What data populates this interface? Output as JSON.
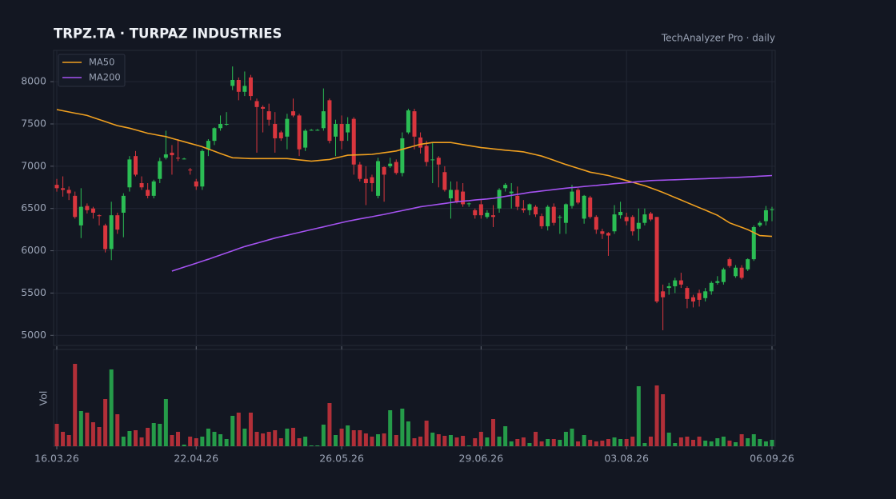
{
  "chart_data": {
    "type": "candlestick",
    "title": "TRPZ.TA  ·  TURPAZ INDUSTRIES",
    "subtitle": "TechAnalyzer Pro · daily",
    "volume_label": "Vol",
    "categories": [
      "16.03.26",
      null,
      null,
      null,
      null,
      null,
      null,
      null,
      null,
      null,
      null,
      null,
      null,
      null,
      null,
      null,
      null,
      null,
      null,
      null,
      null,
      null,
      null,
      "22.04.26",
      null,
      null,
      null,
      null,
      null,
      null,
      null,
      null,
      null,
      null,
      null,
      null,
      null,
      null,
      null,
      null,
      null,
      null,
      null,
      null,
      null,
      null,
      null,
      "26.05.26",
      null,
      null,
      null,
      null,
      null,
      null,
      null,
      null,
      null,
      null,
      null,
      null,
      null,
      null,
      null,
      null,
      null,
      null,
      null,
      null,
      null,
      null,
      "29.06.26",
      null,
      null,
      null,
      null,
      null,
      null,
      null,
      null,
      null,
      null,
      null,
      null,
      null,
      null,
      null,
      null,
      null,
      null,
      null,
      null,
      null,
      null,
      null,
      "03.08.26",
      null,
      null,
      null,
      null,
      null,
      null,
      null,
      null,
      null,
      null,
      null,
      null,
      null,
      null,
      null,
      null,
      null,
      null,
      null,
      null,
      null,
      null,
      null,
      "06.09.26"
    ],
    "open": [
      6780,
      6740,
      6720,
      6650,
      6300,
      6530,
      6500,
      6420,
      6300,
      6020,
      6420,
      6450,
      6750,
      7120,
      6800,
      6720,
      6650,
      6850,
      7100,
      7160,
      7100,
      7090,
      6960,
      6820,
      6760,
      7200,
      7300,
      7450,
      7500,
      7950,
      8020,
      7880,
      8050,
      7770,
      7700,
      7650,
      7500,
      7400,
      7350,
      7650,
      7600,
      7220,
      7430,
      7430,
      7450,
      7780,
      7350,
      7500,
      7400,
      7560,
      7020,
      6850,
      6870,
      6650,
      6990,
      7000,
      7050,
      6920,
      7400,
      7650,
      7340,
      7240,
      7080,
      7100,
      6930,
      6620,
      6720,
      6700,
      6560,
      6480,
      6550,
      6400,
      6420,
      6500,
      6740,
      6680,
      6650,
      6500,
      6480,
      6520,
      6410,
      6290,
      6520,
      6400,
      6330,
      6530,
      6720,
      6380,
      6630,
      6400,
      6230,
      6210,
      6230,
      6420,
      6400,
      6400,
      6260,
      6330,
      6440,
      6400,
      5520,
      5560,
      5580,
      5650,
      5560,
      5450,
      5500,
      5440,
      5520,
      5620,
      5630,
      5900,
      5700,
      5800,
      5780,
      5900,
      6300,
      6350,
      6480
    ],
    "high": [
      6850,
      6880,
      6760,
      6700,
      6740,
      6560,
      6520,
      6430,
      6320,
      6580,
      6450,
      6680,
      7120,
      7180,
      6880,
      6800,
      6840,
      7100,
      7420,
      7250,
      7320,
      7100,
      6980,
      6850,
      7200,
      7320,
      7460,
      7600,
      7640,
      8180,
      8050,
      8120,
      8080,
      7800,
      7720,
      7740,
      7640,
      7420,
      7620,
      7800,
      7620,
      7440,
      7440,
      7440,
      7920,
      7800,
      7550,
      7600,
      7580,
      7580,
      7050,
      7000,
      6900,
      7100,
      7000,
      7100,
      7080,
      7400,
      7680,
      7680,
      7400,
      7300,
      7280,
      7120,
      7000,
      6820,
      6820,
      6800,
      6570,
      6500,
      6600,
      6480,
      6540,
      6740,
      6800,
      6800,
      6760,
      6600,
      6560,
      6540,
      6440,
      6540,
      6560,
      6420,
      6560,
      6780,
      6740,
      6660,
      6650,
      6420,
      6260,
      6220,
      6540,
      6580,
      6450,
      6420,
      6500,
      6500,
      6460,
      6400,
      5600,
      5620,
      5680,
      5740,
      5580,
      5480,
      5540,
      5560,
      5640,
      5700,
      5800,
      5920,
      5830,
      5830,
      5910,
      6300,
      6350,
      6530,
      6520
    ],
    "low": [
      6700,
      6640,
      6600,
      6380,
      6150,
      6440,
      6380,
      6300,
      5980,
      5890,
      6200,
      6160,
      6700,
      6880,
      6720,
      6620,
      6620,
      6800,
      7080,
      6900,
      7060,
      7080,
      6900,
      6720,
      6720,
      7120,
      7250,
      7420,
      7480,
      7900,
      7780,
      7830,
      7780,
      7160,
      7400,
      7480,
      7160,
      7300,
      7200,
      7580,
      7120,
      7180,
      7420,
      7420,
      7420,
      7270,
      7120,
      7200,
      7300,
      6900,
      6820,
      6540,
      6700,
      6620,
      6580,
      6980,
      6900,
      6880,
      7380,
      7200,
      7150,
      7000,
      6800,
      6750,
      6700,
      6380,
      6560,
      6520,
      6520,
      6380,
      6380,
      6380,
      6280,
      6450,
      6700,
      6500,
      6480,
      6450,
      6420,
      6400,
      6260,
      6240,
      6300,
      6200,
      6200,
      6500,
      6550,
      6320,
      6380,
      6200,
      6140,
      5940,
      6200,
      6380,
      6300,
      6180,
      6120,
      6300,
      6350,
      5380,
      5060,
      5480,
      5500,
      5560,
      5320,
      5330,
      5340,
      5400,
      5480,
      5600,
      5600,
      5800,
      5680,
      5660,
      5760,
      5880,
      6280,
      6300,
      6350
    ],
    "close": [
      6740,
      6720,
      6680,
      6400,
      6520,
      6480,
      6450,
      6410,
      6020,
      6420,
      6250,
      6650,
      7080,
      6900,
      6750,
      6650,
      6820,
      7060,
      7140,
      7130,
      7090,
      7090,
      6950,
      6760,
      7180,
      7300,
      7450,
      7500,
      7500,
      8020,
      7880,
      7950,
      7830,
      7700,
      7680,
      7550,
      7330,
      7330,
      7560,
      7600,
      7200,
      7420,
      7430,
      7430,
      7650,
      7300,
      7500,
      7300,
      7500,
      7020,
      6850,
      6800,
      6800,
      7060,
      6900,
      7030,
      6920,
      7330,
      7660,
      7350,
      7220,
      7050,
      7080,
      7020,
      6720,
      6720,
      6580,
      6550,
      6560,
      6420,
      6420,
      6450,
      6400,
      6720,
      6780,
      6700,
      6520,
      6480,
      6550,
      6430,
      6290,
      6520,
      6330,
      6400,
      6550,
      6700,
      6570,
      6650,
      6400,
      6250,
      6200,
      6180,
      6430,
      6460,
      6350,
      6230,
      6330,
      6430,
      6370,
      5400,
      5450,
      5580,
      5650,
      5600,
      5430,
      5400,
      5420,
      5520,
      5620,
      5640,
      5780,
      5820,
      5800,
      5680,
      5900,
      6280,
      6330,
      6480,
      6490
    ],
    "volume": [
      28,
      18,
      14,
      103,
      44,
      42,
      30,
      24,
      59,
      96,
      40,
      12,
      19,
      20,
      11,
      23,
      29,
      28,
      59,
      14,
      18,
      2,
      12,
      10,
      12,
      22,
      18,
      15,
      9,
      38,
      42,
      22,
      42,
      18,
      16,
      18,
      20,
      10,
      22,
      23,
      10,
      12,
      1,
      1,
      27,
      54,
      14,
      22,
      26,
      20,
      20,
      16,
      12,
      15,
      16,
      45,
      14,
      47,
      31,
      10,
      12,
      32,
      17,
      15,
      13,
      14,
      11,
      13,
      1,
      10,
      18,
      11,
      34,
      12,
      25,
      6,
      9,
      11,
      4,
      18,
      6,
      9,
      9,
      8,
      18,
      22,
      6,
      14,
      8,
      6,
      7,
      9,
      11,
      9,
      9,
      12,
      75,
      4,
      12,
      76,
      65,
      17,
      4,
      11,
      12,
      8,
      12,
      7,
      6,
      10,
      12,
      7,
      5,
      15,
      10,
      15,
      9,
      6,
      8
    ],
    "up_color": "#2bbd54",
    "down_color": "#d9363e",
    "series": [
      {
        "name": "MA50",
        "color": "#f0a020",
        "values": [
          7670,
          7656,
          7642,
          7628,
          7614,
          7600,
          7576,
          7552,
          7528,
          7504,
          7480,
          7465,
          7450,
          7430,
          7410,
          7390,
          7377,
          7363,
          7350,
          7330,
          7310,
          7290,
          7270,
          7250,
          7230,
          7203,
          7177,
          7150,
          7125,
          7100,
          7097,
          7093,
          7090,
          7090,
          7090,
          7090,
          7090,
          7090,
          7090,
          7083,
          7075,
          7068,
          7060,
          7067,
          7073,
          7080,
          7097,
          7113,
          7130,
          7133,
          7135,
          7138,
          7140,
          7150,
          7160,
          7170,
          7180,
          7200,
          7220,
          7240,
          7260,
          7270,
          7280,
          7280,
          7280,
          7280,
          7268,
          7256,
          7244,
          7232,
          7220,
          7213,
          7205,
          7198,
          7190,
          7183,
          7177,
          7170,
          7153,
          7137,
          7120,
          7095,
          7070,
          7045,
          7020,
          6998,
          6975,
          6953,
          6930,
          6917,
          6903,
          6890,
          6870,
          6850,
          6830,
          6810,
          6790,
          6770,
          6743,
          6717,
          6690,
          6660,
          6630,
          6600,
          6570,
          6540,
          6510,
          6480,
          6450,
          6420,
          6375,
          6330,
          6303,
          6277,
          6250,
          6215,
          6180,
          6175,
          6170
        ]
      },
      {
        "name": "MA200",
        "color": "#a452f0",
        "values": [
          null,
          null,
          null,
          null,
          null,
          null,
          null,
          null,
          null,
          null,
          null,
          null,
          null,
          null,
          null,
          null,
          null,
          null,
          null,
          5760,
          5783,
          5807,
          5830,
          5853,
          5877,
          5900,
          5925,
          5950,
          5975,
          6000,
          6025,
          6050,
          6070,
          6090,
          6110,
          6130,
          6150,
          6167,
          6183,
          6200,
          6217,
          6233,
          6250,
          6267,
          6283,
          6300,
          6317,
          6333,
          6350,
          6363,
          6377,
          6390,
          6403,
          6417,
          6430,
          6445,
          6460,
          6475,
          6490,
          6505,
          6520,
          6530,
          6540,
          6550,
          6560,
          6570,
          6580,
          6587,
          6593,
          6600,
          6607,
          6613,
          6620,
          6632,
          6643,
          6655,
          6667,
          6678,
          6690,
          6698,
          6707,
          6715,
          6723,
          6732,
          6740,
          6747,
          6753,
          6760,
          6767,
          6773,
          6780,
          6786,
          6793,
          6799,
          6805,
          6811,
          6818,
          6824,
          6830,
          6833,
          6835,
          6838,
          6840,
          6843,
          6845,
          6848,
          6850,
          6853,
          6856,
          6859,
          6861,
          6864,
          6867,
          6870,
          6874,
          6878,
          6882,
          6886,
          6890
        ]
      }
    ],
    "ylim": [
      4880,
      8370
    ],
    "yticks": [
      5000,
      5500,
      6000,
      6500,
      7000,
      7500,
      8000
    ],
    "volume_ylim": [
      0,
      110
    ],
    "grid": true,
    "legend": "upper left"
  }
}
